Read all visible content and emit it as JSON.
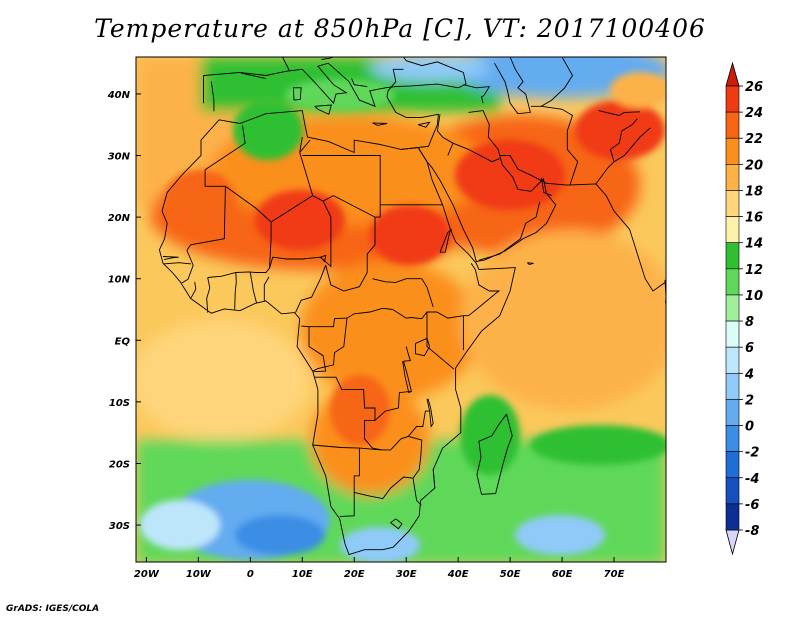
{
  "title": "Temperature at 850hPa [C], VT: 2017100406",
  "footer": "GrADS: IGES/COLA",
  "map": {
    "lon_range": [
      -22,
      80
    ],
    "lat_range": [
      -36,
      46
    ],
    "x_ticks": [
      {
        "lon": -20,
        "label": "20W"
      },
      {
        "lon": -10,
        "label": "10W"
      },
      {
        "lon": 0,
        "label": "0"
      },
      {
        "lon": 10,
        "label": "10E"
      },
      {
        "lon": 20,
        "label": "20E"
      },
      {
        "lon": 30,
        "label": "30E"
      },
      {
        "lon": 40,
        "label": "40E"
      },
      {
        "lon": 50,
        "label": "50E"
      },
      {
        "lon": 60,
        "label": "60E"
      },
      {
        "lon": 70,
        "label": "70E"
      }
    ],
    "y_ticks": [
      {
        "lat": 40,
        "label": "40N"
      },
      {
        "lat": 30,
        "label": "30N"
      },
      {
        "lat": 20,
        "label": "20N"
      },
      {
        "lat": 10,
        "label": "10N"
      },
      {
        "lat": 0,
        "label": "EQ"
      },
      {
        "lat": -10,
        "label": "10S"
      },
      {
        "lat": -20,
        "label": "20S"
      },
      {
        "lat": -30,
        "label": "30S"
      }
    ]
  },
  "colorbar": {
    "levels": [
      "26",
      "24",
      "22",
      "20",
      "18",
      "16",
      "14",
      "12",
      "10",
      "8",
      "6",
      "4",
      "2",
      "0",
      "-2",
      "-4",
      "-6",
      "-8"
    ],
    "colors": [
      "#f03a12",
      "#f76512",
      "#fb8f1c",
      "#fdb248",
      "#fed57a",
      "#fdf2a8",
      "#2fc032",
      "#5fd85a",
      "#a0f09b",
      "#dcfcf7",
      "#bde6fb",
      "#8fcaf8",
      "#63acf0",
      "#3b8de5",
      "#1f6dd6",
      "#1550be",
      "#0b2f93",
      "#09105f"
    ],
    "top_arrow_color": "#d01a0a",
    "bottom_arrow_color": "#d8d4fa"
  },
  "colors": {
    "ocean_base": "#fbc85c",
    "coast": "#000000"
  }
}
